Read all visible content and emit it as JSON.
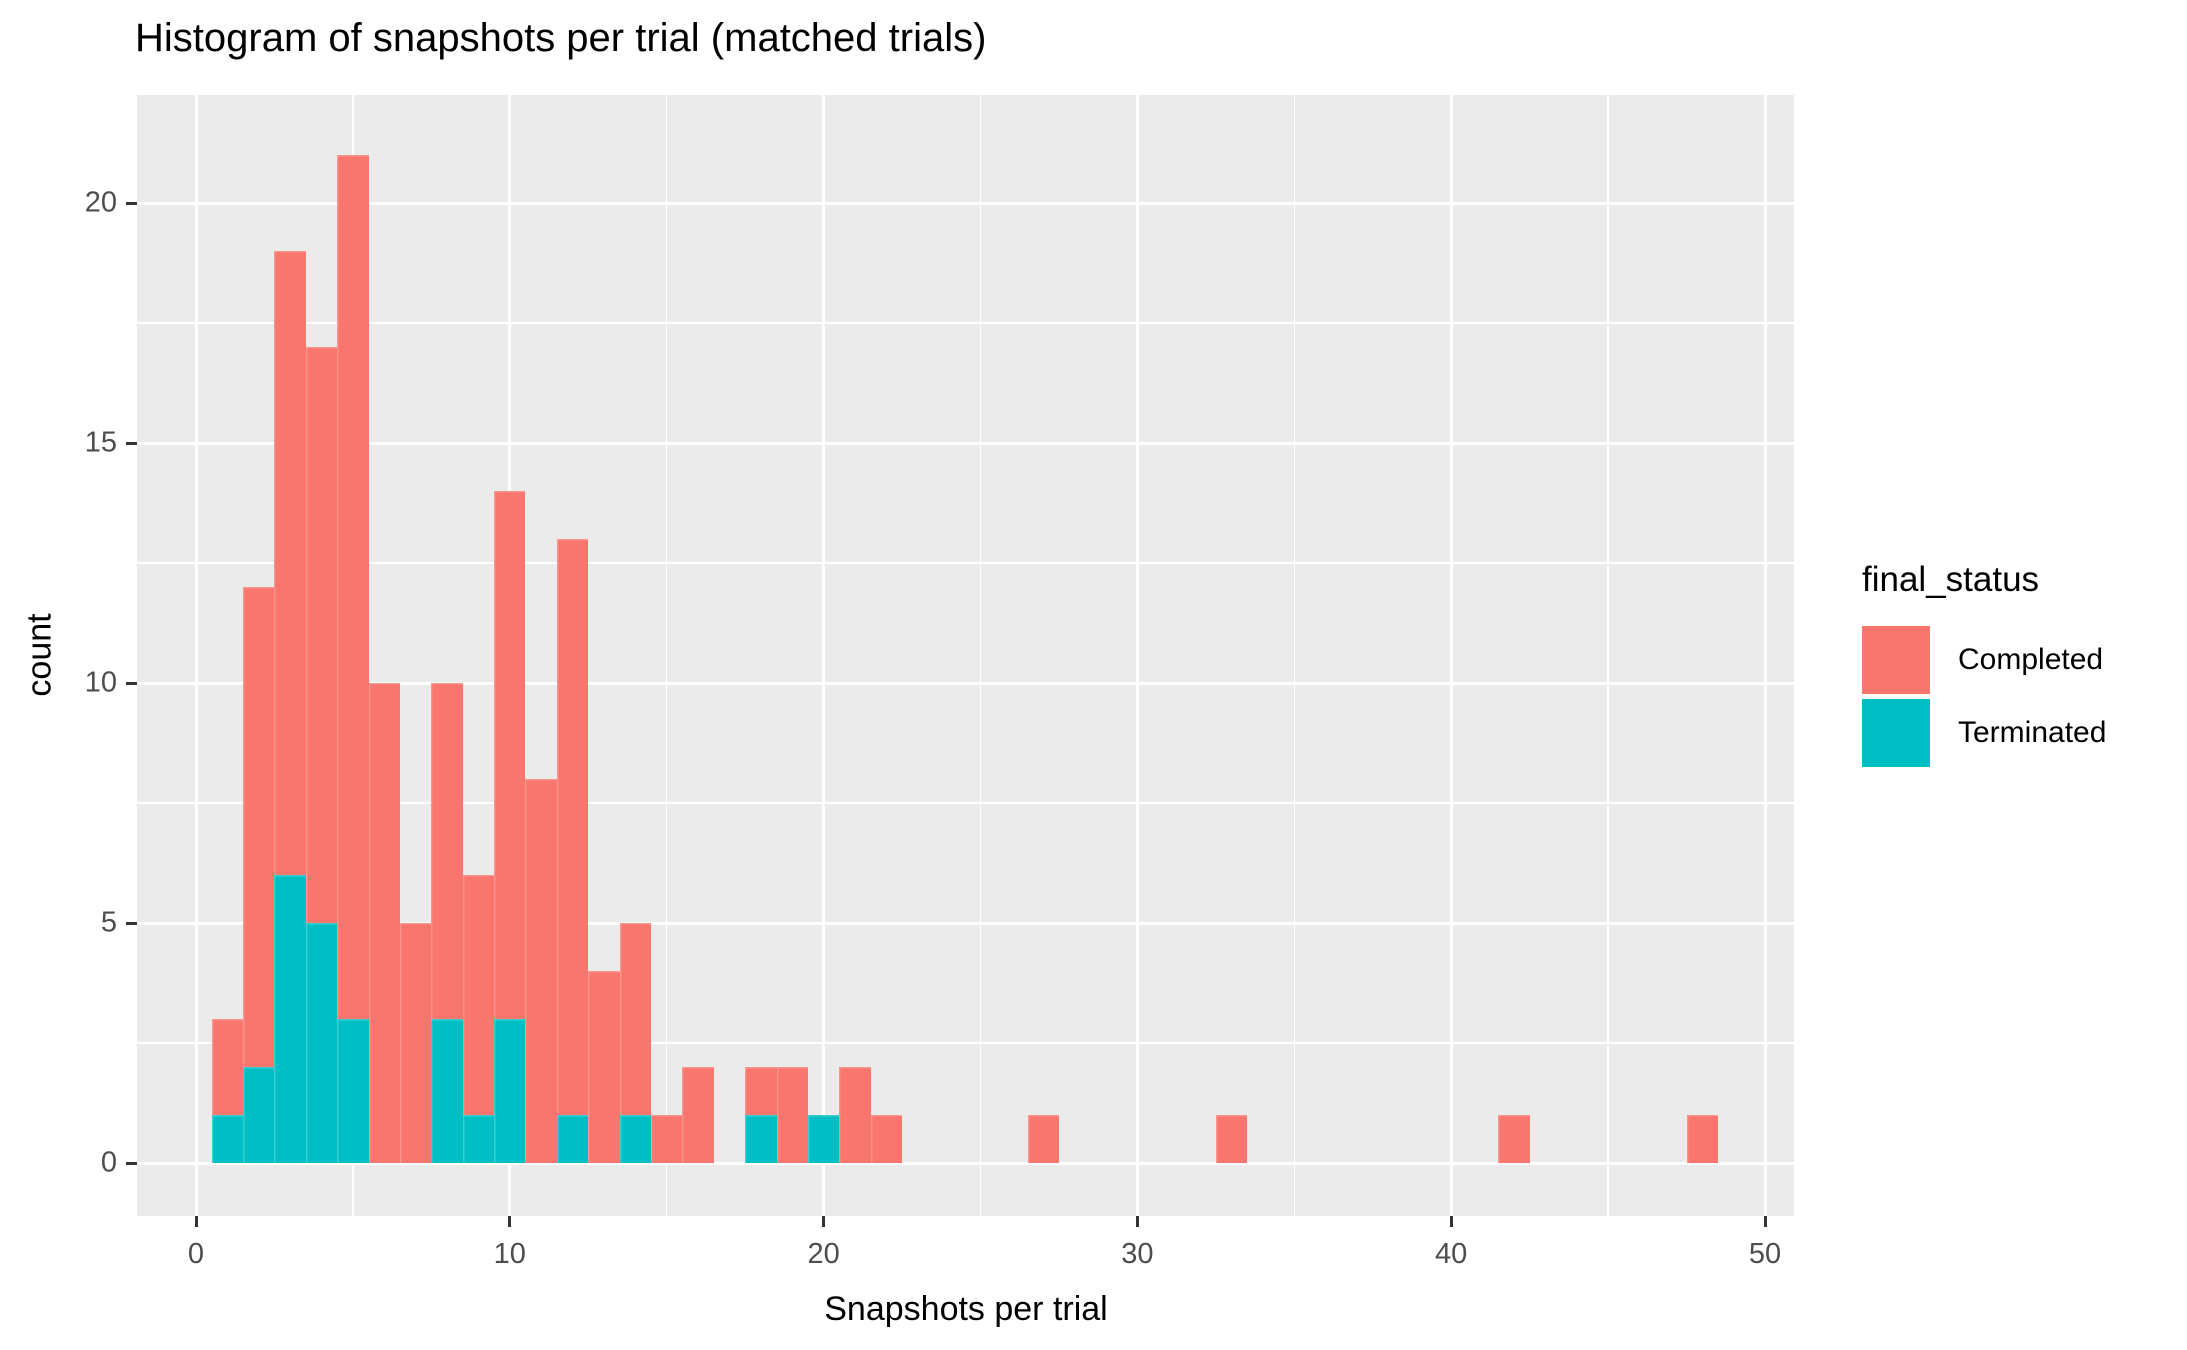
{
  "chart_data": {
    "type": "bar",
    "subtype": "stacked_histogram",
    "title": "Histogram of snapshots per trial (matched trials)",
    "xlabel": "Snapshots per trial",
    "ylabel": "count",
    "binwidth": 1,
    "stack_order_bottom_to_top": [
      "Terminated",
      "Completed"
    ],
    "series_colors": {
      "Completed": "#F8766D",
      "Terminated": "#00BFC4"
    },
    "bins": [
      {
        "x": 1,
        "Completed": 2,
        "Terminated": 1
      },
      {
        "x": 2,
        "Completed": 10,
        "Terminated": 2
      },
      {
        "x": 3,
        "Completed": 13,
        "Terminated": 6
      },
      {
        "x": 4,
        "Completed": 12,
        "Terminated": 5
      },
      {
        "x": 5,
        "Completed": 18,
        "Terminated": 3
      },
      {
        "x": 6,
        "Completed": 10,
        "Terminated": 0
      },
      {
        "x": 7,
        "Completed": 5,
        "Terminated": 0
      },
      {
        "x": 8,
        "Completed": 7,
        "Terminated": 3
      },
      {
        "x": 9,
        "Completed": 5,
        "Terminated": 1
      },
      {
        "x": 10,
        "Completed": 11,
        "Terminated": 3
      },
      {
        "x": 11,
        "Completed": 8,
        "Terminated": 0
      },
      {
        "x": 12,
        "Completed": 12,
        "Terminated": 1
      },
      {
        "x": 13,
        "Completed": 4,
        "Terminated": 0
      },
      {
        "x": 14,
        "Completed": 4,
        "Terminated": 1
      },
      {
        "x": 15,
        "Completed": 1,
        "Terminated": 0
      },
      {
        "x": 16,
        "Completed": 2,
        "Terminated": 0
      },
      {
        "x": 18,
        "Completed": 1,
        "Terminated": 1
      },
      {
        "x": 19,
        "Completed": 2,
        "Terminated": 0
      },
      {
        "x": 20,
        "Completed": 0,
        "Terminated": 1
      },
      {
        "x": 21,
        "Completed": 2,
        "Terminated": 0
      },
      {
        "x": 22,
        "Completed": 1,
        "Terminated": 0
      },
      {
        "x": 27,
        "Completed": 1,
        "Terminated": 0
      },
      {
        "x": 33,
        "Completed": 1,
        "Terminated": 0
      },
      {
        "x": 42,
        "Completed": 1,
        "Terminated": 0
      },
      {
        "x": 48,
        "Completed": 1,
        "Terminated": 0
      }
    ],
    "x_ticks": [
      0,
      10,
      20,
      30,
      40,
      50
    ],
    "x_minor_gridlines": [
      5,
      15,
      25,
      35,
      45
    ],
    "y_ticks": [
      0,
      5,
      10,
      15,
      20
    ],
    "y_minor_gridlines": [
      2.5,
      7.5,
      12.5,
      17.5
    ],
    "xlim": [
      -1.9,
      50.9
    ],
    "ylim": [
      -1.1,
      22.35
    ],
    "grid": true,
    "legend": {
      "title": "final_status",
      "position": "right",
      "entries": [
        {
          "label": "Completed",
          "color": "#F8766D"
        },
        {
          "label": "Terminated",
          "color": "#00BFC4"
        }
      ]
    },
    "theme": {
      "panel_background": "#EBEBEB",
      "gridline_color": "#FFFFFF",
      "tick_color": "#333333",
      "tick_label_color": "#4D4D4D",
      "text_color": "#000000",
      "background": "#FFFFFF"
    }
  }
}
